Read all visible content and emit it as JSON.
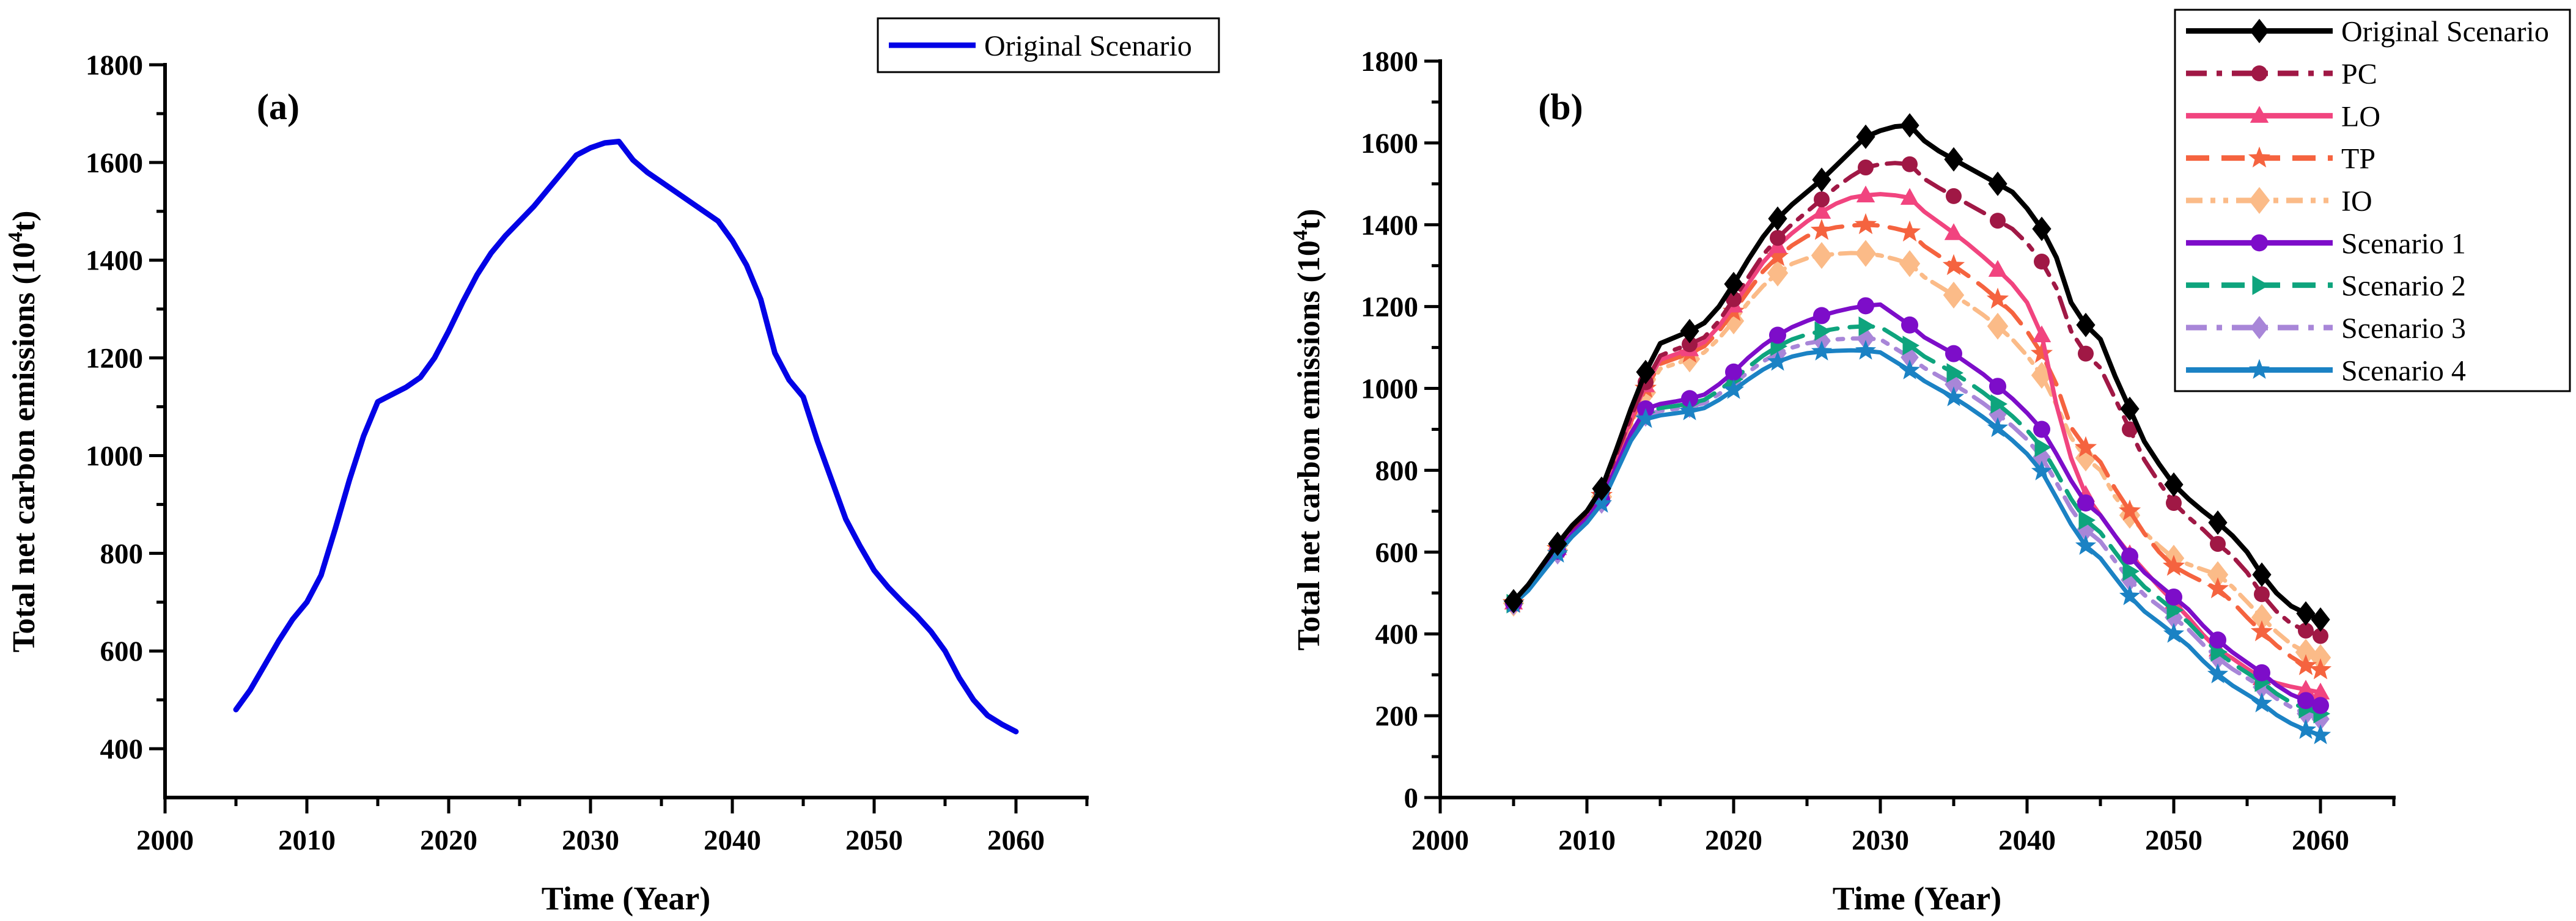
{
  "figure": {
    "background": "#ffffff",
    "description": "Two-panel line figure of total net carbon emissions scenarios, 2005-2060"
  },
  "chart_data": [
    {
      "type": "line",
      "panel_label": "(a)",
      "xlabel": "Time (Year)",
      "ylabel_parts": {
        "prefix": "Total net carbon emissions (10",
        "sup": "4",
        "suffix": "t)"
      },
      "x_range": [
        2000,
        2065
      ],
      "y_range": [
        300,
        1800
      ],
      "x_major_ticks": [
        2000,
        2010,
        2020,
        2030,
        2040,
        2050,
        2060
      ],
      "x_minor_ticks": [
        2005,
        2015,
        2025,
        2035,
        2045,
        2055,
        2065
      ],
      "y_major_ticks": [
        400,
        600,
        800,
        1000,
        1200,
        1400,
        1600,
        1800
      ],
      "y_minor_ticks": [
        500,
        700,
        900,
        1100,
        1300,
        1500,
        1700
      ],
      "grid": false,
      "legend_position": "top-right",
      "years_from": 2005,
      "years_to": 2060,
      "series": [
        {
          "name": "Original Scenario",
          "color": "#0202e6",
          "line_style": "solid",
          "marker": "none",
          "line_width": 9,
          "values": [
            480,
            520,
            570,
            620,
            665,
            700,
            755,
            850,
            950,
            1040,
            1110,
            1125,
            1140,
            1160,
            1200,
            1255,
            1315,
            1370,
            1415,
            1450,
            1480,
            1510,
            1545,
            1580,
            1615,
            1630,
            1640,
            1643,
            1605,
            1580,
            1560,
            1540,
            1520,
            1500,
            1480,
            1440,
            1390,
            1320,
            1210,
            1155,
            1120,
            1030,
            950,
            870,
            815,
            765,
            730,
            700,
            672,
            640,
            600,
            545,
            500,
            468,
            450,
            435
          ]
        }
      ]
    },
    {
      "type": "line",
      "panel_label": "(b)",
      "xlabel": "Time (Year)",
      "ylabel_parts": {
        "prefix": "Total net carbon emissions (10",
        "sup": "4",
        "suffix": "t)"
      },
      "x_range": [
        2000,
        2065
      ],
      "y_range": [
        0,
        1800
      ],
      "x_major_ticks": [
        2000,
        2010,
        2020,
        2030,
        2040,
        2050,
        2060
      ],
      "x_minor_ticks": [
        2005,
        2015,
        2025,
        2035,
        2045,
        2055,
        2065
      ],
      "y_major_ticks": [
        0,
        200,
        400,
        600,
        800,
        1000,
        1200,
        1400,
        1600,
        1800
      ],
      "y_minor_ticks": [
        100,
        300,
        500,
        700,
        900,
        1100,
        1300,
        1500,
        1700
      ],
      "grid": false,
      "legend_position": "top-right",
      "years_from": 2005,
      "years_to": 2060,
      "marker_interval_years": 3,
      "series": [
        {
          "name": "Original Scenario",
          "color": "#000000",
          "line_style": "solid",
          "marker": "diamond",
          "marker_size": 20,
          "line_width": 8,
          "values": [
            480,
            520,
            570,
            620,
            665,
            700,
            755,
            850,
            950,
            1040,
            1110,
            1125,
            1140,
            1160,
            1200,
            1255,
            1315,
            1370,
            1415,
            1450,
            1480,
            1510,
            1545,
            1580,
            1615,
            1630,
            1640,
            1643,
            1605,
            1580,
            1560,
            1540,
            1520,
            1500,
            1480,
            1440,
            1390,
            1320,
            1210,
            1155,
            1120,
            1030,
            950,
            870,
            815,
            765,
            730,
            700,
            672,
            640,
            600,
            545,
            500,
            468,
            450,
            435
          ]
        },
        {
          "name": "PC",
          "color": "#a01845",
          "line_style": "dash-dot",
          "marker": "circle",
          "marker_size": 13,
          "line_width": 7,
          "values": [
            478,
            516,
            564,
            612,
            656,
            692,
            745,
            838,
            930,
            1015,
            1080,
            1095,
            1108,
            1125,
            1165,
            1218,
            1272,
            1326,
            1368,
            1402,
            1432,
            1462,
            1492,
            1518,
            1540,
            1548,
            1551,
            1548,
            1512,
            1490,
            1470,
            1450,
            1430,
            1410,
            1390,
            1355,
            1310,
            1245,
            1140,
            1085,
            1050,
            975,
            900,
            825,
            770,
            720,
            685,
            655,
            620,
            590,
            550,
            497,
            455,
            425,
            408,
            395
          ]
        },
        {
          "name": "LO",
          "color": "#f1447f",
          "line_style": "solid",
          "marker": "triangle-up",
          "marker_size": 16,
          "line_width": 7,
          "values": [
            477,
            514,
            562,
            610,
            654,
            690,
            742,
            832,
            925,
            1008,
            1070,
            1083,
            1096,
            1113,
            1152,
            1203,
            1256,
            1308,
            1348,
            1380,
            1408,
            1432,
            1452,
            1466,
            1472,
            1475,
            1472,
            1466,
            1432,
            1406,
            1380,
            1352,
            1322,
            1290,
            1255,
            1210,
            1130,
            960,
            830,
            740,
            690,
            640,
            595,
            555,
            515,
            478,
            440,
            398,
            362,
            340,
            315,
            292,
            280,
            271,
            264,
            257
          ]
        },
        {
          "name": "TP",
          "color": "#f5633f",
          "line_style": "dashed",
          "marker": "star",
          "marker_size": 19,
          "line_width": 7,
          "values": [
            476,
            512,
            560,
            608,
            652,
            688,
            738,
            826,
            918,
            1000,
            1060,
            1073,
            1086,
            1103,
            1140,
            1188,
            1238,
            1286,
            1322,
            1350,
            1372,
            1386,
            1394,
            1398,
            1400,
            1398,
            1391,
            1382,
            1348,
            1324,
            1300,
            1275,
            1248,
            1218,
            1185,
            1140,
            1085,
            1010,
            905,
            855,
            820,
            755,
            700,
            645,
            600,
            565,
            545,
            527,
            510,
            478,
            440,
            405,
            372,
            344,
            322,
            312
          ]
        },
        {
          "name": "IO",
          "color": "#fbbb88",
          "line_style": "dash-dot-dot",
          "marker": "diamond",
          "marker_size": 22,
          "line_width": 7,
          "values": [
            475,
            510,
            558,
            605,
            648,
            685,
            735,
            820,
            910,
            990,
            1048,
            1060,
            1072,
            1088,
            1122,
            1165,
            1210,
            1250,
            1282,
            1305,
            1318,
            1325,
            1329,
            1331,
            1330,
            1325,
            1316,
            1305,
            1272,
            1250,
            1228,
            1205,
            1180,
            1152,
            1120,
            1080,
            1032,
            960,
            880,
            830,
            800,
            735,
            690,
            648,
            615,
            585,
            570,
            557,
            545,
            515,
            478,
            440,
            405,
            375,
            355,
            342
          ]
        },
        {
          "name": "Scenario 1",
          "color": "#7d0dc9",
          "line_style": "solid",
          "marker": "circle",
          "marker_size": 14,
          "line_width": 7,
          "values": [
            475,
            510,
            556,
            602,
            645,
            680,
            728,
            808,
            890,
            950,
            962,
            968,
            975,
            985,
            1010,
            1040,
            1075,
            1105,
            1130,
            1150,
            1165,
            1178,
            1188,
            1196,
            1202,
            1205,
            1180,
            1155,
            1125,
            1105,
            1085,
            1060,
            1035,
            1005,
            975,
            940,
            900,
            840,
            775,
            720,
            690,
            640,
            590,
            550,
            520,
            490,
            460,
            420,
            385,
            355,
            330,
            305,
            275,
            252,
            237,
            225
          ]
        },
        {
          "name": "Scenario 2",
          "color": "#0ea47d",
          "line_style": "dashed",
          "marker": "triangle-right",
          "marker_size": 16,
          "line_width": 7,
          "values": [
            474,
            508,
            554,
            600,
            643,
            678,
            725,
            805,
            885,
            942,
            952,
            957,
            963,
            972,
            995,
            1022,
            1052,
            1080,
            1103,
            1120,
            1132,
            1140,
            1146,
            1150,
            1152,
            1150,
            1128,
            1105,
            1078,
            1058,
            1038,
            1015,
            990,
            962,
            932,
            898,
            856,
            795,
            730,
            678,
            648,
            600,
            553,
            515,
            487,
            458,
            428,
            390,
            356,
            328,
            305,
            282,
            254,
            232,
            217,
            205
          ]
        },
        {
          "name": "Scenario 3",
          "color": "#a886d8",
          "line_style": "dash-dot",
          "marker": "diamond",
          "marker_size": 19,
          "line_width": 7,
          "values": [
            474,
            507,
            553,
            598,
            641,
            676,
            722,
            800,
            880,
            935,
            945,
            950,
            956,
            964,
            986,
            1012,
            1040,
            1066,
            1086,
            1100,
            1110,
            1116,
            1120,
            1122,
            1122,
            1120,
            1098,
            1076,
            1050,
            1030,
            1010,
            988,
            964,
            937,
            908,
            875,
            832,
            770,
            706,
            655,
            626,
            578,
            532,
            495,
            468,
            440,
            411,
            374,
            341,
            314,
            292,
            270,
            242,
            221,
            205,
            192
          ]
        },
        {
          "name": "Scenario 4",
          "color": "#1b82c4",
          "line_style": "solid",
          "marker": "star",
          "marker_size": 18,
          "line_width": 7,
          "values": [
            473,
            506,
            551,
            596,
            638,
            672,
            718,
            795,
            872,
            925,
            934,
            939,
            944,
            952,
            972,
            996,
            1022,
            1046,
            1065,
            1078,
            1086,
            1090,
            1092,
            1093,
            1092,
            1088,
            1066,
            1044,
            1018,
            998,
            978,
            955,
            930,
            903,
            873,
            840,
            797,
            733,
            668,
            615,
            585,
            538,
            492,
            455,
            428,
            400,
            371,
            334,
            301,
            274,
            252,
            230,
            202,
            181,
            165,
            152
          ]
        }
      ]
    }
  ]
}
